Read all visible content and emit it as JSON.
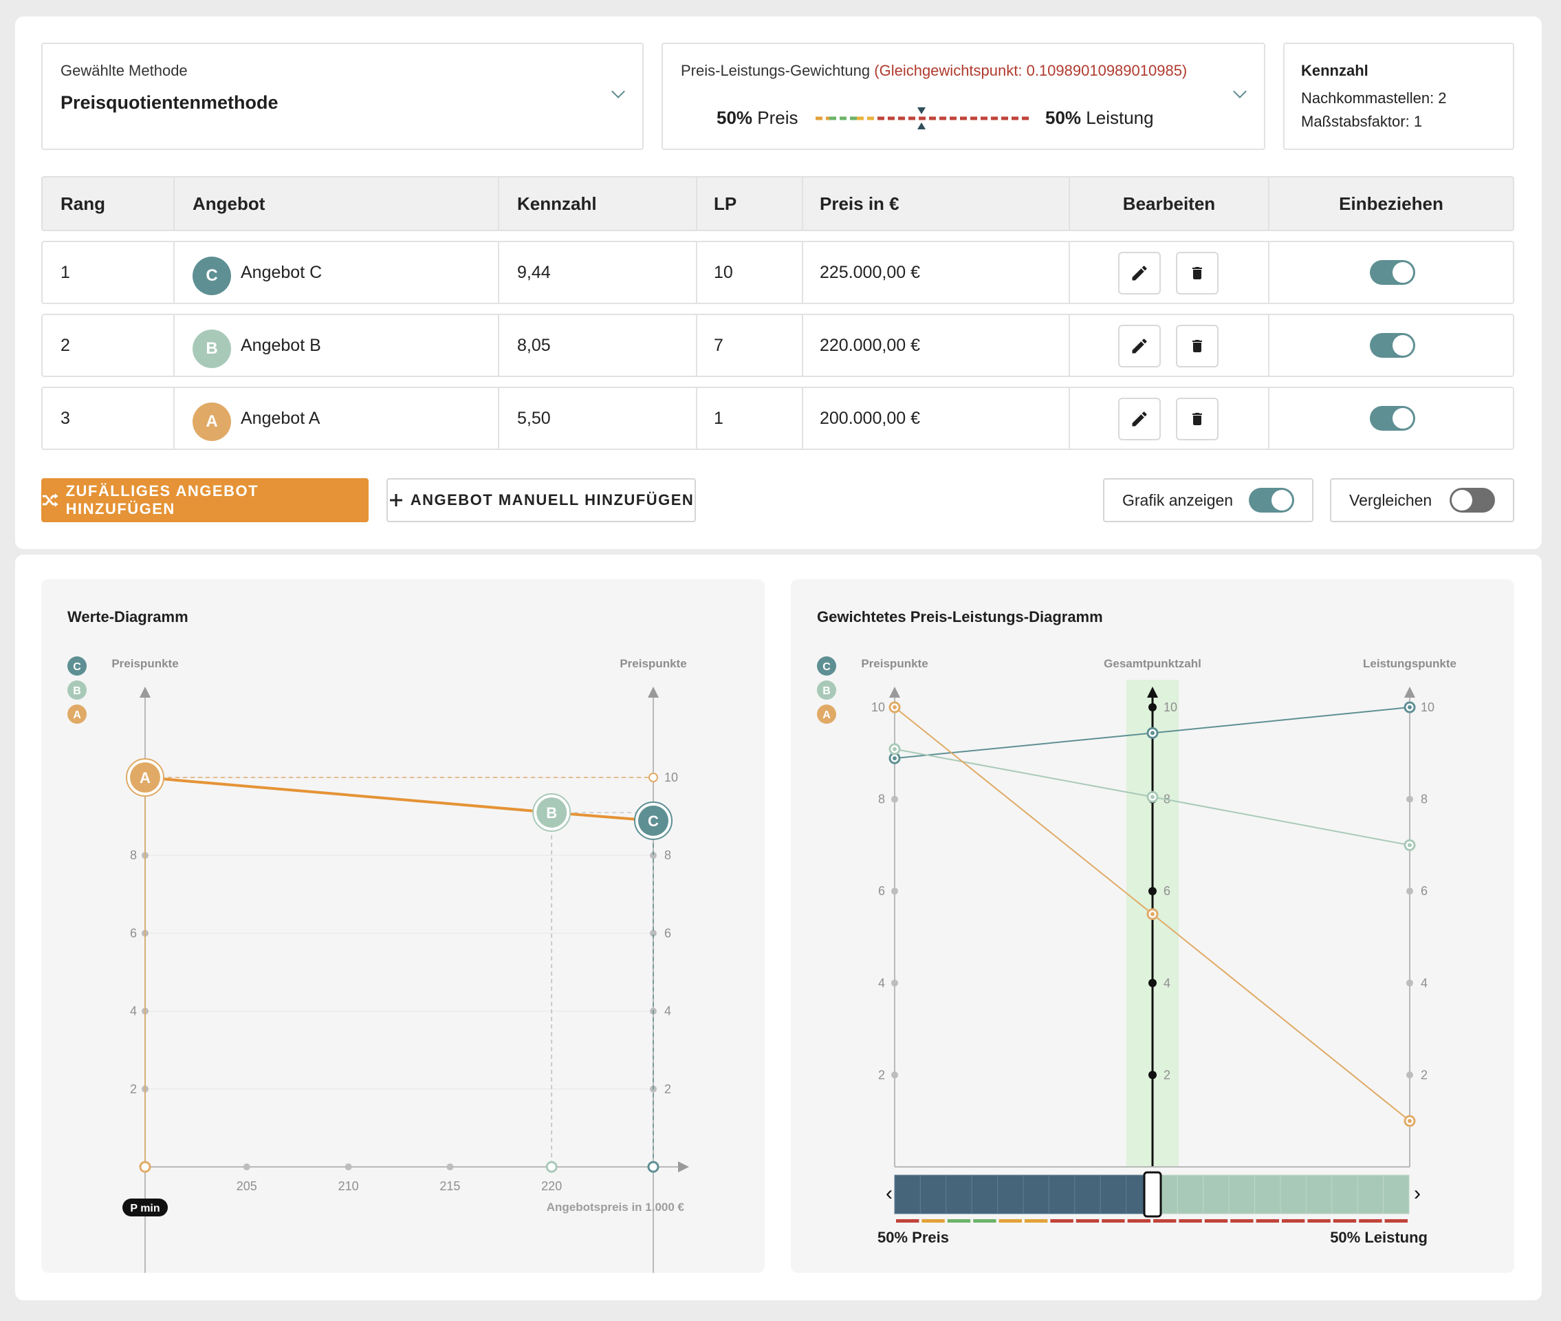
{
  "method": {
    "label": "Gewählte Methode",
    "value": "Preisquotientenmethode"
  },
  "weighting": {
    "label": "Preis-Leistungs-Gewichtung",
    "equilibrium": "(Gleichgewichtspunkt: 0.10989010989010985)",
    "price_pct": "50%",
    "price_word": "Preis",
    "perf_pct": "50%",
    "perf_word": "Leistung"
  },
  "kennzahl": {
    "title": "Kennzahl",
    "decimals": "Nachkommastellen: 2",
    "scale": "Maßstabsfaktor: 1"
  },
  "table": {
    "headers": [
      "Rang",
      "Angebot",
      "Kennzahl",
      "LP",
      "Preis in €",
      "Bearbeiten",
      "Einbeziehen"
    ],
    "rows": [
      {
        "rank": "1",
        "letter": "C",
        "name": "Angebot C",
        "kennzahl": "9,44",
        "lp": "10",
        "price": "225.000,00 €",
        "color": "#5e8f93",
        "included": true
      },
      {
        "rank": "2",
        "letter": "B",
        "name": "Angebot B",
        "kennzahl": "8,05",
        "lp": "7",
        "price": "220.000,00 €",
        "color": "#a9c9b8",
        "included": true
      },
      {
        "rank": "3",
        "letter": "A",
        "name": "Angebot A",
        "kennzahl": "5,50",
        "lp": "1",
        "price": "200.000,00 €",
        "color": "#e0aa66",
        "included": true
      }
    ]
  },
  "actions": {
    "random": "ZUFÄLLIGES ANGEBOT HINZUFÜGEN",
    "manual": "ANGEBOT MANUELL HINZUFÜGEN",
    "show_chart": "Grafik anzeigen",
    "compare": "Vergleichen",
    "show_chart_on": true,
    "compare_on": false
  },
  "colors": {
    "accent": "#e59336",
    "teal": "#5e8f93",
    "light_green": "#a9c9b8",
    "orange_soft": "#e0aa66",
    "equilibrium_red": "#b03a2e",
    "toggle_on": "#5e8f93",
    "toggle_off": "#6e6e6e"
  },
  "chart1": {
    "title": "Werte-Diagramm",
    "left_axis": "Preispunkte",
    "right_axis": "Preispunkte",
    "x_label": "Angebotspreis in 1.000 €",
    "pmin": "P min",
    "y_ticks": [
      "10",
      "8",
      "6",
      "4",
      "2"
    ],
    "x_ticks": [
      "205",
      "210",
      "215",
      "220"
    ]
  },
  "chart2": {
    "title": "Gewichtetes Preis-Leistungs-Diagramm",
    "left_axis": "Preispunkte",
    "center_axis": "Gesamtpunktzahl",
    "right_axis": "Leistungspunkte",
    "y_ticks": [
      "10",
      "8",
      "6",
      "4",
      "2"
    ],
    "slider_left": "50% Preis",
    "slider_right": "50% Leistung"
  },
  "chart_data": [
    {
      "type": "line",
      "title": "Werte-Diagramm",
      "xlabel": "Angebotspreis in 1.000 €",
      "ylabel": "Preispunkte",
      "xlim": [
        200,
        225
      ],
      "ylim": [
        0,
        10
      ],
      "series": [
        {
          "name": "A",
          "x": [
            200
          ],
          "y": [
            10
          ]
        },
        {
          "name": "B",
          "x": [
            220
          ],
          "y": [
            9.1
          ]
        },
        {
          "name": "C",
          "x": [
            225
          ],
          "y": [
            8.89
          ]
        }
      ]
    },
    {
      "type": "line",
      "title": "Gewichtetes Preis-Leistungs-Diagramm",
      "categories": [
        "Preispunkte",
        "Gesamtpunktzahl",
        "Leistungspunkte"
      ],
      "ylim": [
        0,
        10
      ],
      "series": [
        {
          "name": "C",
          "values": [
            8.89,
            9.44,
            10
          ]
        },
        {
          "name": "B",
          "values": [
            9.09,
            8.05,
            7
          ]
        },
        {
          "name": "A",
          "values": [
            10,
            5.5,
            1
          ]
        }
      ]
    }
  ]
}
